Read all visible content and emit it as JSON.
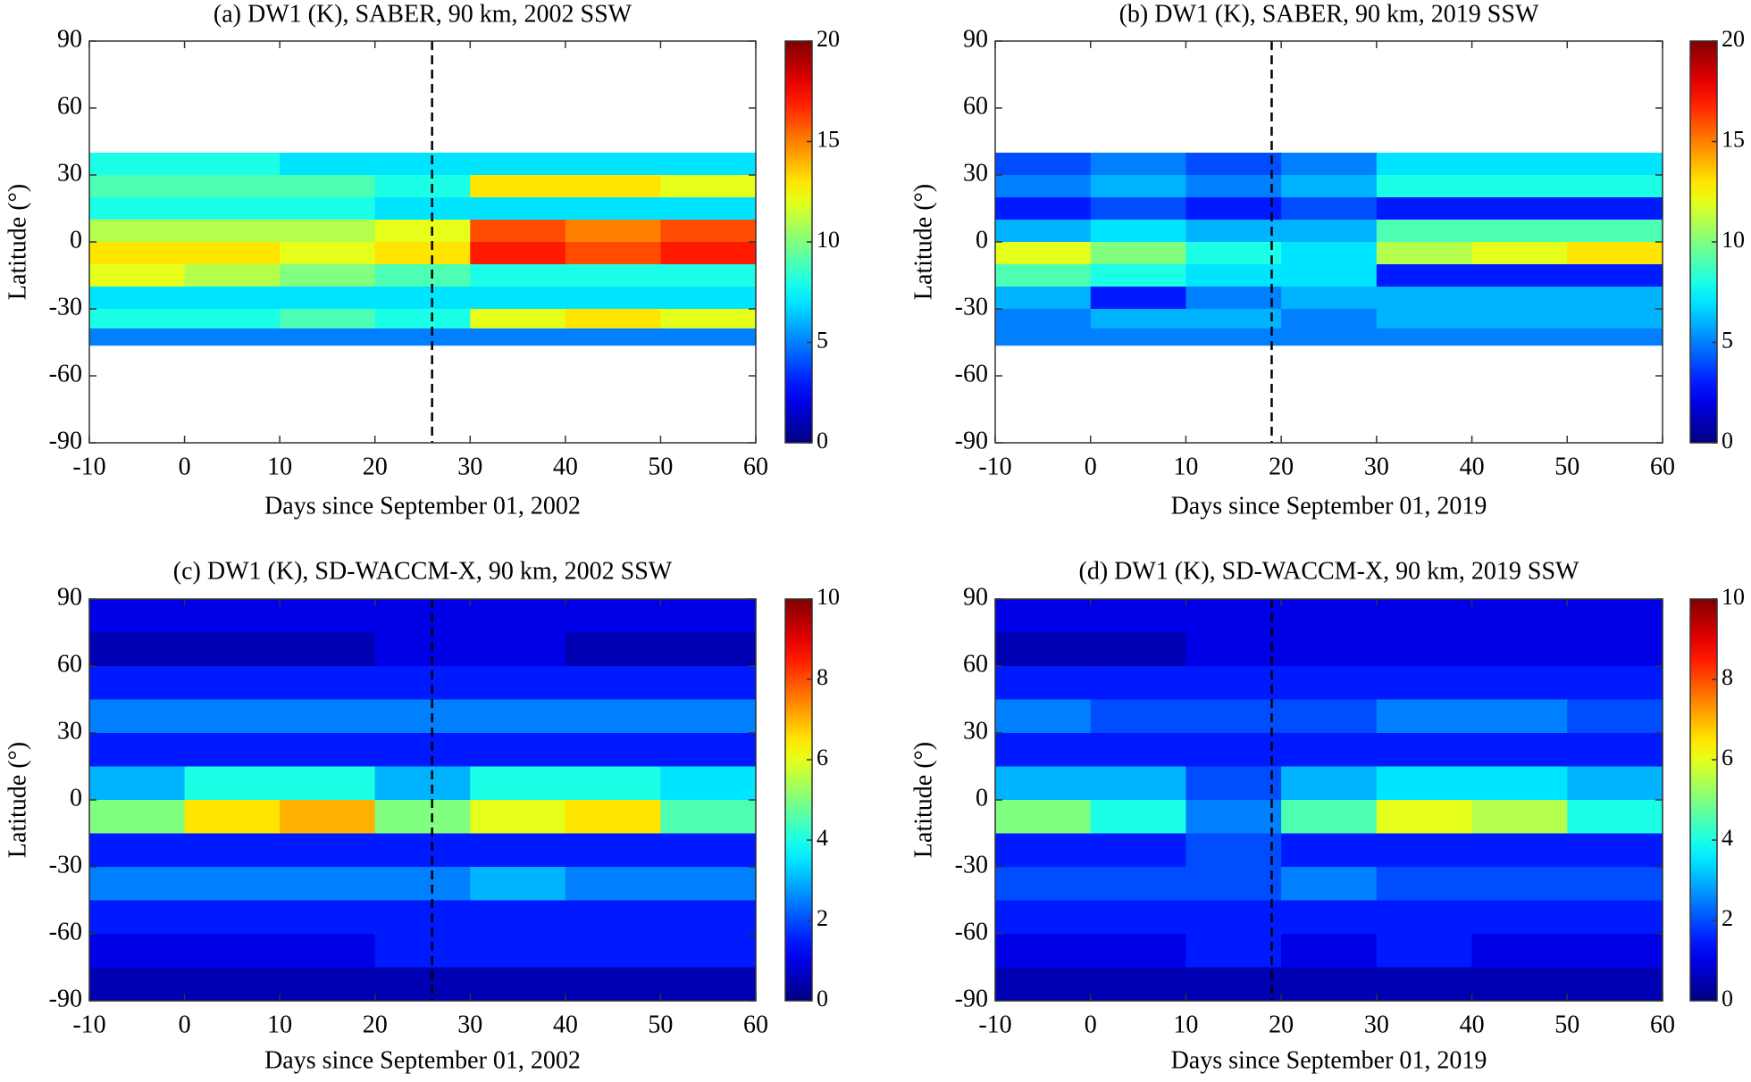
{
  "chart_data": [
    {
      "type": "contour",
      "title": "(a) DW1 (K), SABER, 90 km, 2002 SSW",
      "xlabel": "Days since September 01, 2002",
      "ylabel": "Latitude (°)",
      "colormap": "jet",
      "xlim": [
        -10,
        60
      ],
      "ylim": [
        -90,
        90
      ],
      "xticks": [
        -10,
        0,
        10,
        20,
        30,
        40,
        50,
        60
      ],
      "yticks": [
        -90,
        -60,
        -30,
        0,
        30,
        60,
        90
      ],
      "clim": [
        0,
        20
      ],
      "cticks": [
        0,
        5,
        10,
        15,
        20
      ],
      "vline_x": 26,
      "x": [
        -5,
        5,
        15,
        25,
        35,
        45,
        55
      ],
      "y": [
        35,
        25,
        15,
        5,
        -5,
        -15,
        -25,
        -35,
        -42.5
      ],
      "z": [
        [
          8,
          8,
          7,
          7,
          7,
          7,
          7
        ],
        [
          9,
          9,
          9,
          8,
          13,
          13,
          12
        ],
        [
          8,
          8,
          8,
          7,
          7,
          7,
          7
        ],
        [
          11,
          11,
          11,
          12,
          16,
          15,
          16
        ],
        [
          13,
          13,
          12,
          13,
          17,
          16,
          17
        ],
        [
          12,
          11,
          10,
          9,
          8,
          8,
          8
        ],
        [
          7,
          7,
          7,
          7,
          7,
          7,
          7
        ],
        [
          8,
          8,
          9,
          8,
          12,
          13,
          12
        ],
        [
          5,
          5,
          5,
          5,
          5,
          5,
          5
        ]
      ]
    },
    {
      "type": "contour",
      "title": "(b) DW1 (K), SABER, 90 km, 2019 SSW",
      "xlabel": "Days since September 01, 2019",
      "ylabel": "Latitude (°)",
      "colormap": "jet",
      "xlim": [
        -10,
        60
      ],
      "ylim": [
        -90,
        90
      ],
      "xticks": [
        -10,
        0,
        10,
        20,
        30,
        40,
        50,
        60
      ],
      "yticks": [
        -90,
        -60,
        -30,
        0,
        30,
        60,
        90
      ],
      "clim": [
        0,
        20
      ],
      "cticks": [
        0,
        5,
        10,
        15,
        20
      ],
      "vline_x": 19,
      "x": [
        -5,
        5,
        15,
        25,
        35,
        45,
        55
      ],
      "y": [
        35,
        25,
        15,
        5,
        -5,
        -15,
        -25,
        -35,
        -42.5
      ],
      "z": [
        [
          4,
          5,
          4,
          5,
          7,
          7,
          7
        ],
        [
          5,
          6,
          5,
          6,
          8,
          8,
          8
        ],
        [
          3,
          4,
          3,
          4,
          3,
          3,
          3
        ],
        [
          6,
          7,
          6,
          6,
          9,
          9,
          9
        ],
        [
          12,
          10,
          8,
          7,
          11,
          12,
          13
        ],
        [
          9,
          8,
          7,
          7,
          3,
          3,
          3
        ],
        [
          6,
          3,
          5,
          6,
          6,
          6,
          6
        ],
        [
          5,
          6,
          6,
          5,
          6,
          6,
          6
        ],
        [
          5,
          5,
          5,
          5,
          5,
          5,
          5
        ]
      ]
    },
    {
      "type": "contour",
      "title": "(c) DW1 (K), SD-WACCM-X, 90 km, 2002 SSW",
      "xlabel": "Days since September 01, 2002",
      "ylabel": "Latitude (°)",
      "colormap": "jet",
      "xlim": [
        -10,
        60
      ],
      "ylim": [
        -90,
        90
      ],
      "xticks": [
        -10,
        0,
        10,
        20,
        30,
        40,
        50,
        60
      ],
      "yticks": [
        -90,
        -60,
        -30,
        0,
        30,
        60,
        90
      ],
      "clim": [
        0,
        10
      ],
      "cticks": [
        0,
        2,
        4,
        6,
        8,
        10
      ],
      "vline_x": 26,
      "x": [
        -5,
        5,
        15,
        25,
        35,
        45,
        55
      ],
      "y": [
        82.5,
        67.5,
        52.5,
        37.5,
        22.5,
        7.5,
        -7.5,
        -22.5,
        -37.5,
        -52.5,
        -67.5,
        -82.5
      ],
      "z": [
        [
          1,
          1,
          1,
          1,
          1,
          1,
          1
        ],
        [
          0.5,
          0.5,
          0.5,
          1,
          1,
          0.5,
          0.5
        ],
        [
          1.5,
          1.5,
          1.5,
          1.5,
          1.5,
          1.5,
          1.5
        ],
        [
          2.5,
          2.5,
          2.5,
          2.5,
          2.5,
          2.5,
          2.5
        ],
        [
          1.5,
          1.5,
          1.5,
          1.5,
          1.5,
          1.5,
          1.5
        ],
        [
          3,
          4,
          4,
          3,
          4,
          4,
          3.5
        ],
        [
          5,
          6.5,
          7,
          5,
          6,
          6.5,
          4.5
        ],
        [
          1.5,
          1.5,
          1.5,
          1.5,
          1.5,
          1.5,
          1.5
        ],
        [
          2.5,
          2.5,
          2.5,
          2.5,
          3,
          2.5,
          2.5
        ],
        [
          1.5,
          1.5,
          1.5,
          1.5,
          1.5,
          1.5,
          1.5
        ],
        [
          1,
          1,
          1,
          1.5,
          1.5,
          1.5,
          1.5
        ],
        [
          0.5,
          0.5,
          0.5,
          0.5,
          0.5,
          0.5,
          0.5
        ]
      ]
    },
    {
      "type": "contour",
      "title": "(d) DW1 (K), SD-WACCM-X, 90 km, 2019 SSW",
      "xlabel": "Days since September 01, 2019",
      "ylabel": "Latitude (°)",
      "colormap": "jet",
      "xlim": [
        -10,
        60
      ],
      "ylim": [
        -90,
        90
      ],
      "xticks": [
        -10,
        0,
        10,
        20,
        30,
        40,
        50,
        60
      ],
      "yticks": [
        -90,
        -60,
        -30,
        0,
        30,
        60,
        90
      ],
      "clim": [
        0,
        10
      ],
      "cticks": [
        0,
        2,
        4,
        6,
        8,
        10
      ],
      "vline_x": 19,
      "x": [
        -5,
        5,
        15,
        25,
        35,
        45,
        55
      ],
      "y": [
        82.5,
        67.5,
        52.5,
        37.5,
        22.5,
        7.5,
        -7.5,
        -22.5,
        -37.5,
        -52.5,
        -67.5,
        -82.5
      ],
      "z": [
        [
          1,
          1,
          1,
          1,
          1,
          1,
          1
        ],
        [
          0.5,
          0.5,
          1,
          1,
          1,
          1,
          1
        ],
        [
          1.5,
          1.5,
          1.5,
          1.5,
          1.5,
          1.5,
          1.5
        ],
        [
          2.5,
          2,
          2,
          2,
          2.5,
          2.5,
          2
        ],
        [
          1.5,
          1.5,
          1.5,
          1.5,
          1.5,
          1.5,
          1.5
        ],
        [
          3,
          3,
          2,
          3,
          3.5,
          3.5,
          3
        ],
        [
          5,
          4,
          2.5,
          4.5,
          6,
          5.5,
          4
        ],
        [
          1.5,
          1.5,
          2,
          1.5,
          1.5,
          1.5,
          1.5
        ],
        [
          2,
          2,
          2,
          2.5,
          2,
          2,
          2
        ],
        [
          1.5,
          1.5,
          1.5,
          1.5,
          1.5,
          1.5,
          1.5
        ],
        [
          1,
          1,
          1.5,
          1,
          1.5,
          1,
          1
        ],
        [
          0.5,
          0.5,
          0.5,
          0.5,
          0.5,
          0.5,
          0.5
        ]
      ]
    }
  ]
}
